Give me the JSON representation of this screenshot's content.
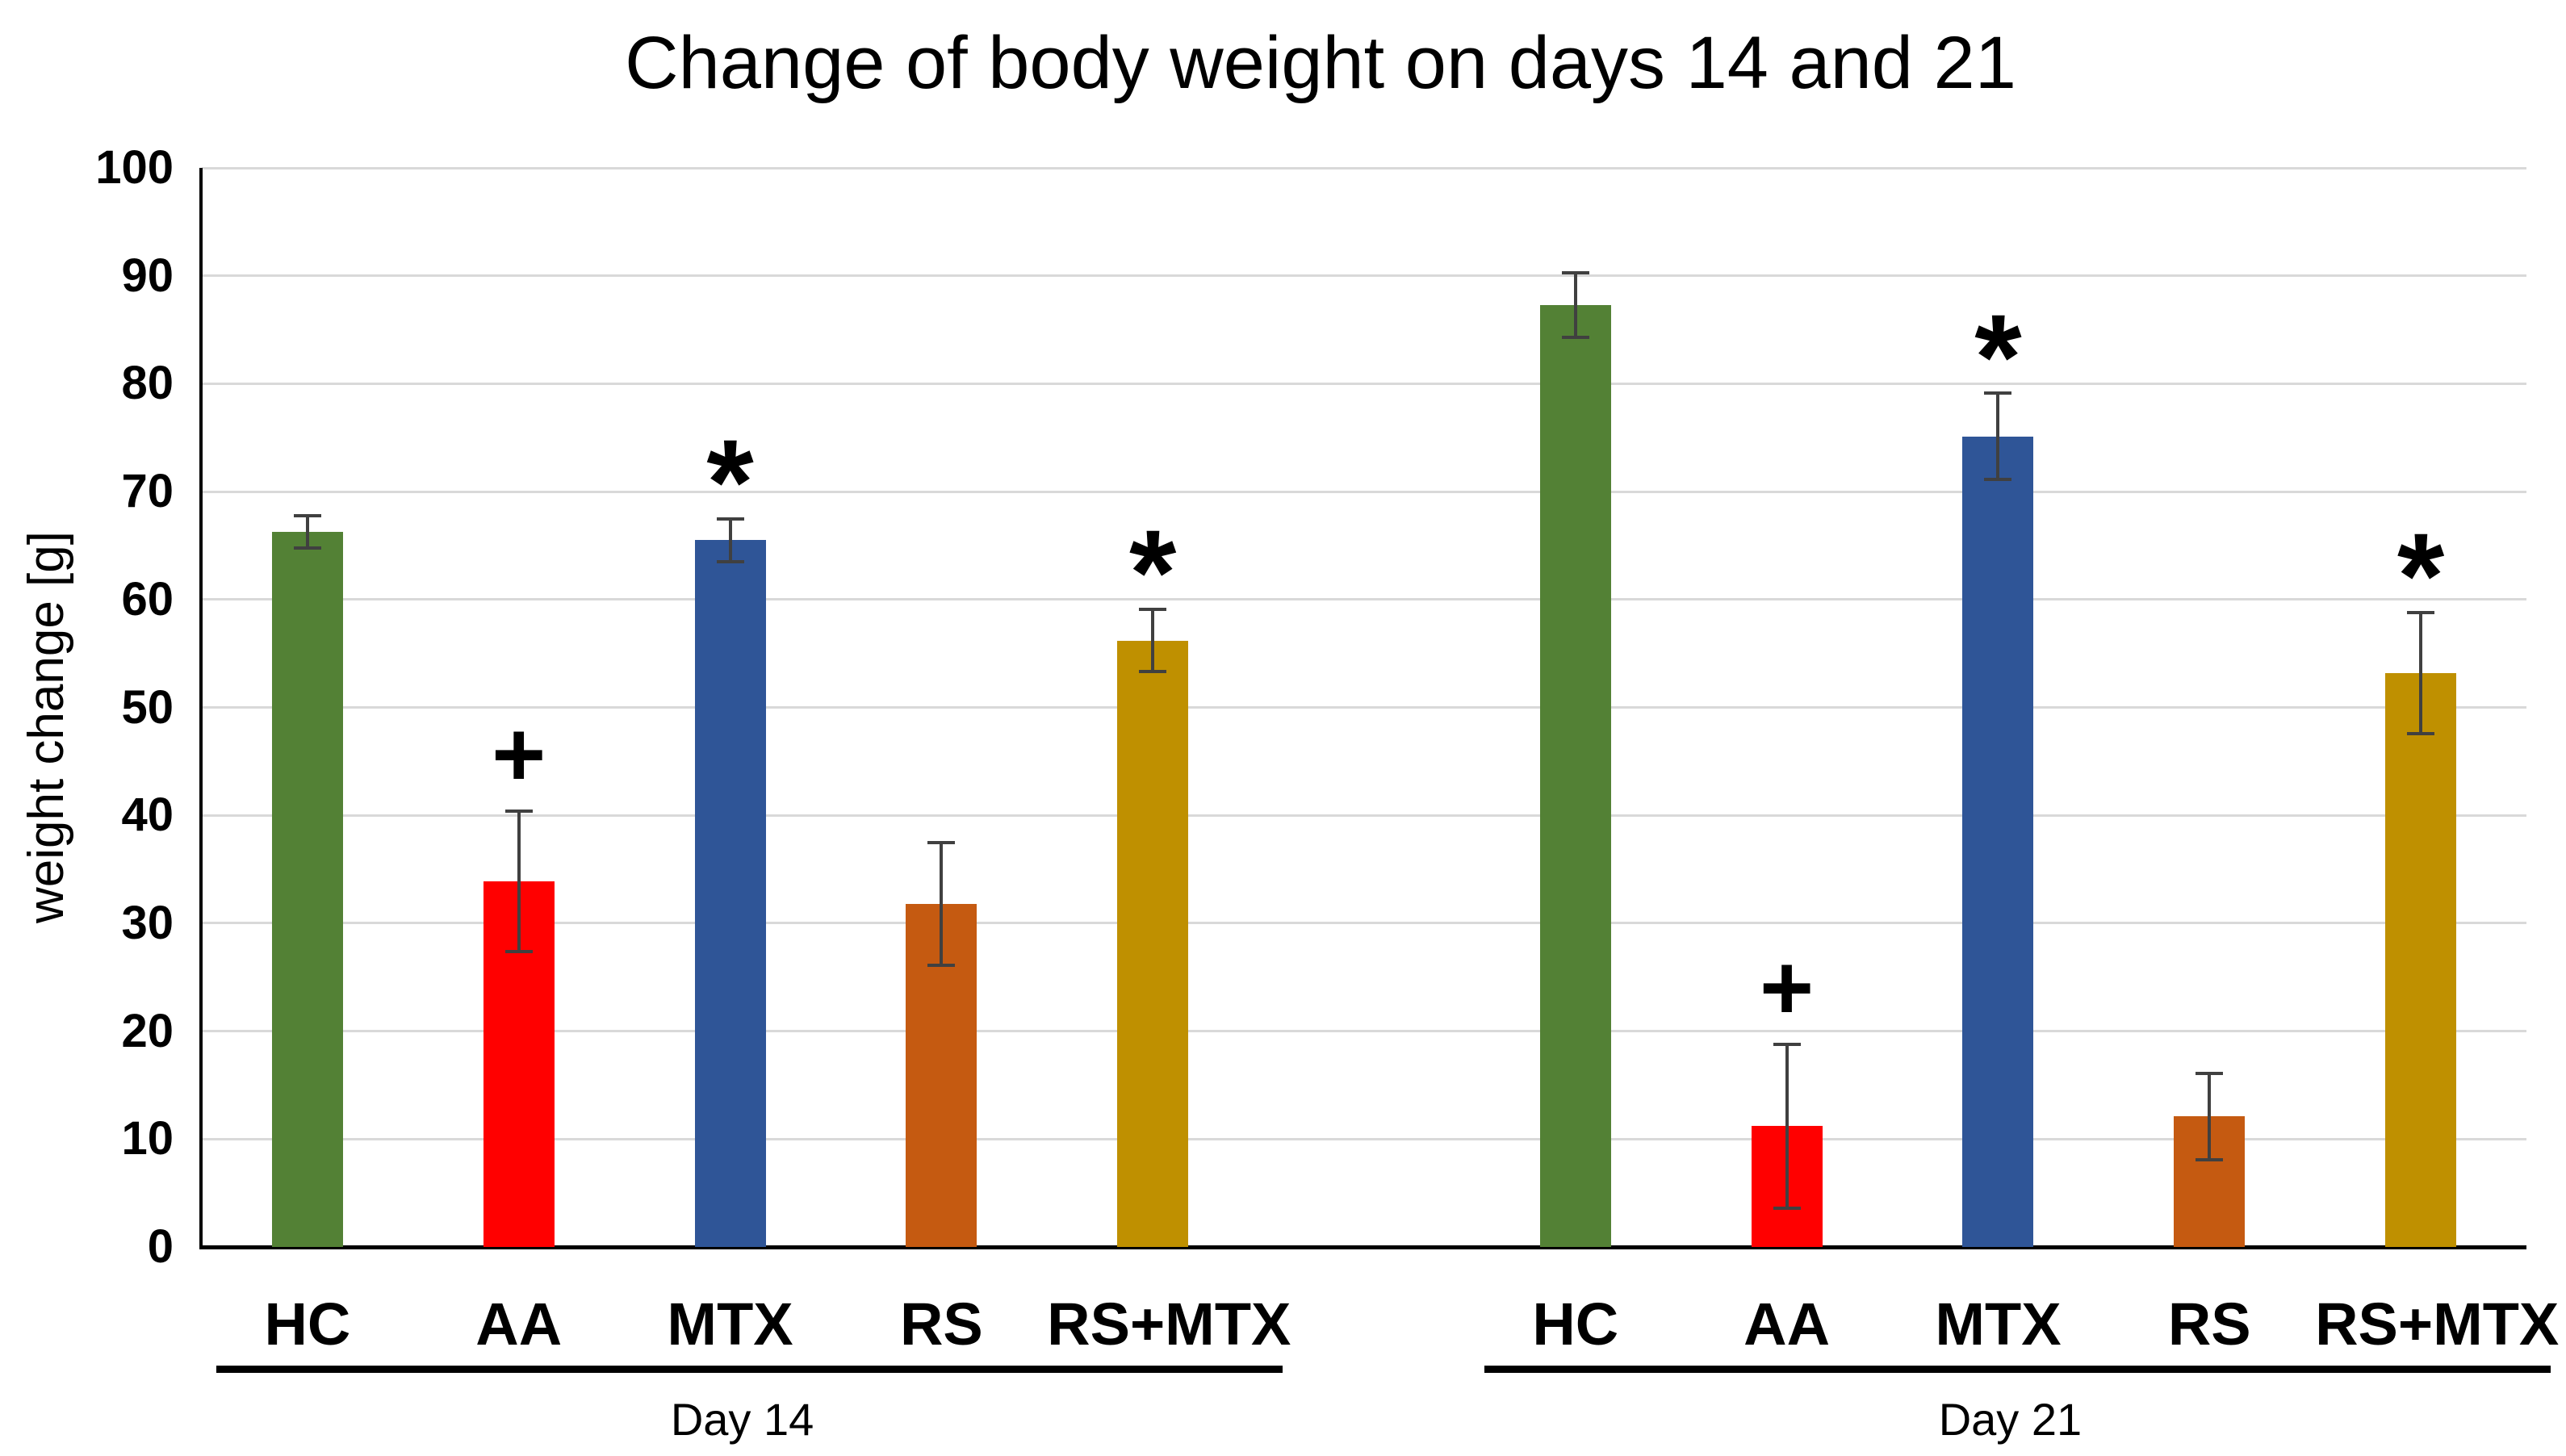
{
  "chart_data": {
    "type": "bar",
    "title": "Change of body weight on days 14 and 21",
    "xlabel": "",
    "ylabel": "weight change [g]",
    "ylim": [
      0,
      100
    ],
    "yticks": [
      0,
      10,
      20,
      30,
      40,
      50,
      60,
      70,
      80,
      90,
      100
    ],
    "grid": true,
    "legend": false,
    "gridline_color": "#D9D9D9",
    "axis_color": "#000000",
    "error_bar_color": "#404040",
    "background_color": "#FFFFFF",
    "significance_markers": {
      "plus": "+",
      "star": "*"
    },
    "groups": [
      {
        "label": "Day 14",
        "bars": [
          {
            "category": "HC",
            "value": 66.3,
            "error": 1.5,
            "color": "#538135",
            "marker": ""
          },
          {
            "category": "AA",
            "value": 33.9,
            "error": 6.5,
            "color": "#FF0000",
            "marker": "+"
          },
          {
            "category": "MTX",
            "value": 65.5,
            "error": 2.0,
            "color": "#2F5597",
            "marker": "*"
          },
          {
            "category": "RS",
            "value": 31.8,
            "error": 5.7,
            "color": "#C55A11",
            "marker": ""
          },
          {
            "category": "RS+MTX",
            "value": 56.2,
            "error": 2.9,
            "color": "#BF9000",
            "marker": "*"
          }
        ]
      },
      {
        "label": "Day 21",
        "bars": [
          {
            "category": "HC",
            "value": 87.3,
            "error": 3.0,
            "color": "#538135",
            "marker": ""
          },
          {
            "category": "AA",
            "value": 11.2,
            "error": 7.6,
            "color": "#FF0000",
            "marker": "+"
          },
          {
            "category": "MTX",
            "value": 75.1,
            "error": 4.0,
            "color": "#2F5597",
            "marker": "*"
          },
          {
            "category": "RS",
            "value": 12.1,
            "error": 4.0,
            "color": "#C55A11",
            "marker": ""
          },
          {
            "category": "RS+MTX",
            "value": 53.2,
            "error": 5.6,
            "color": "#BF9000",
            "marker": "*"
          }
        ]
      }
    ]
  }
}
